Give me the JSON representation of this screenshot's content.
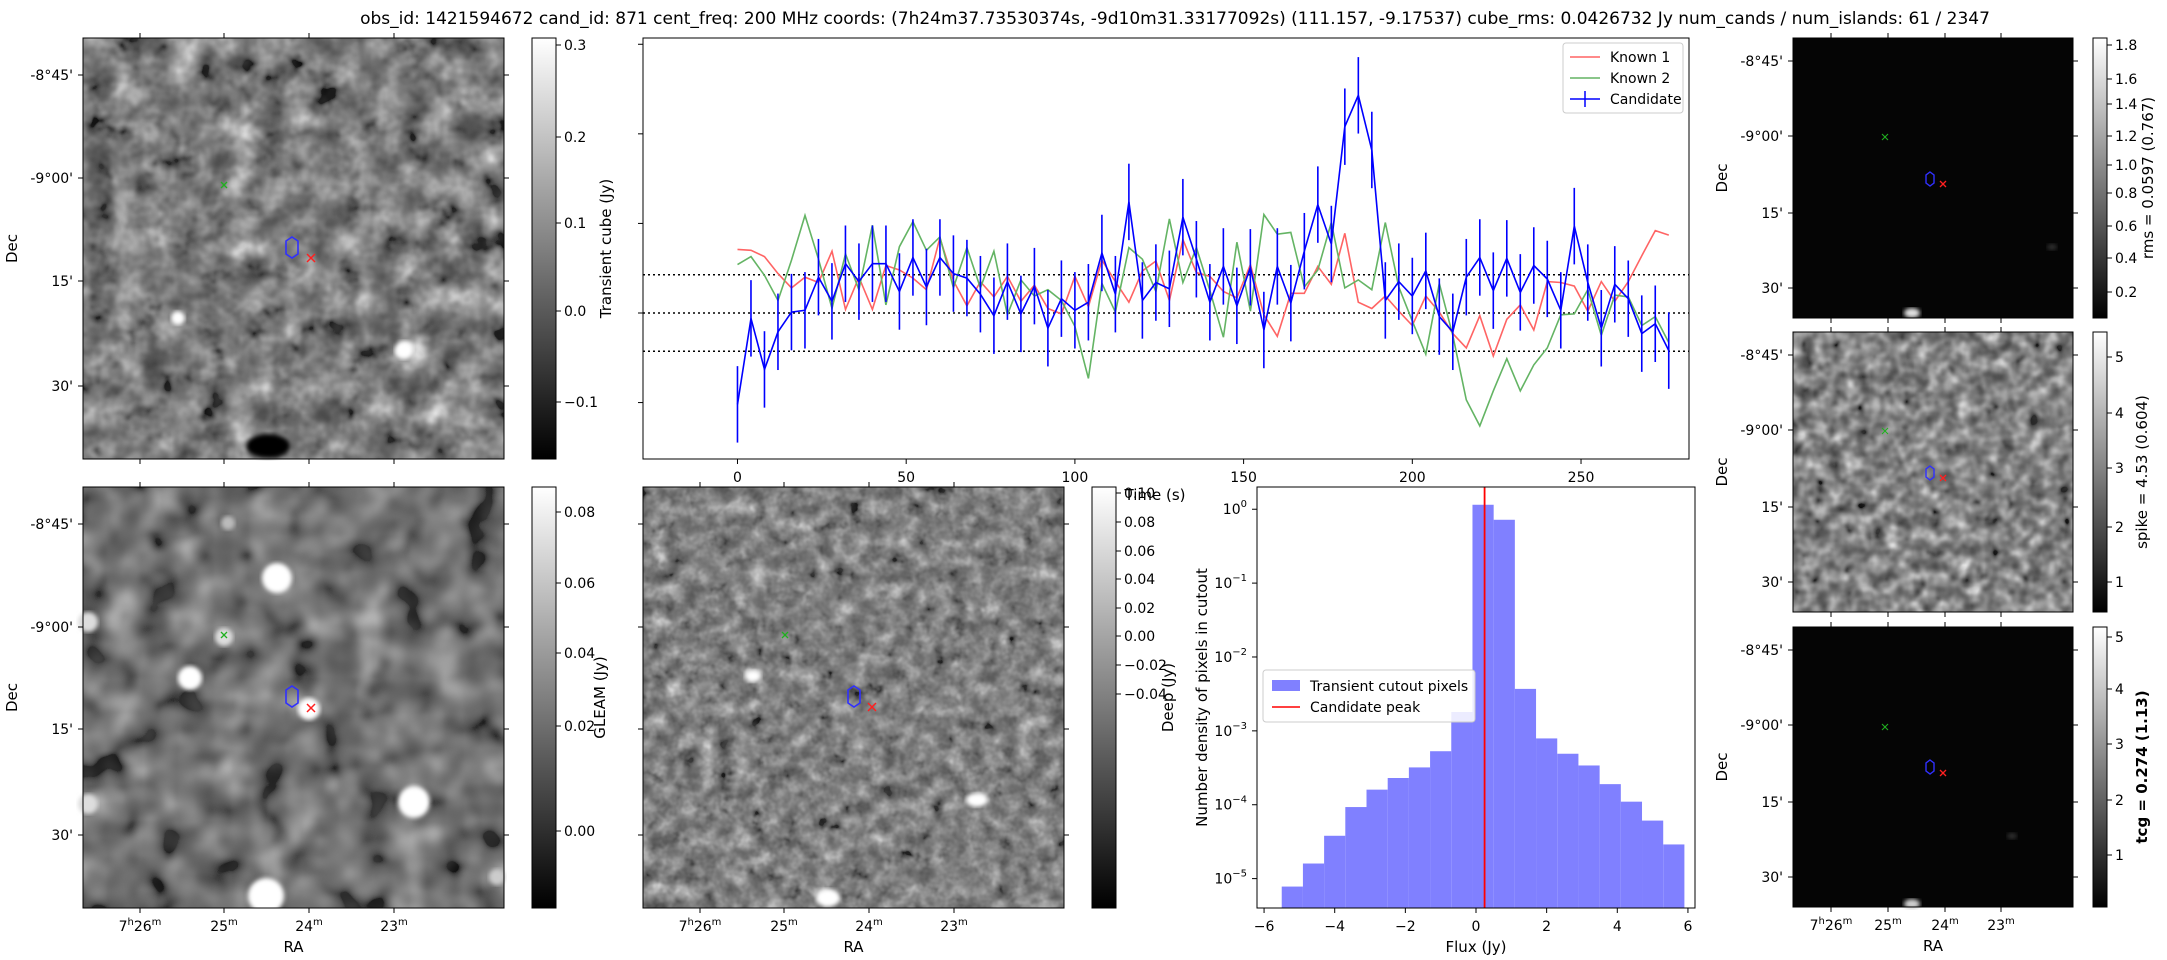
{
  "suptitle": "obs_id: 1421594672 cand_id: 871 cent_freq: 200 MHz coords: (7h24m37.73530374s, -9d10m31.33177092s) (111.157, -9.17537) cube_rms: 0.0426732 Jy num_cands / num_islands: 61 / 2347",
  "sky_axes": {
    "dec_ticks": [
      "-8°45'",
      "-9°00'",
      "15'",
      "30'"
    ],
    "ra_ticks": [
      {
        "h": "7",
        "hu": "h",
        "m": "26",
        "mu": "m"
      },
      {
        "m": "25",
        "mu": "m"
      },
      {
        "m": "24",
        "mu": "m"
      },
      {
        "m": "23",
        "mu": "m"
      }
    ],
    "dec_label": "Dec",
    "ra_label": "RA"
  },
  "colorbars": {
    "transient": {
      "label": "Transient cube (Jy)",
      "ticks": [
        "0.3",
        "0.2",
        "0.1",
        "0.0",
        "−0.1"
      ]
    },
    "gleam": {
      "label": "GLEAM (Jy)",
      "ticks": [
        "0.08",
        "0.06",
        "0.04",
        "0.02",
        "0.00"
      ]
    },
    "deep": {
      "label": "Deep (Jy)",
      "ticks": [
        "0.10",
        "0.08",
        "0.06",
        "0.04",
        "0.02",
        "0.00",
        "−0.02",
        "−0.04"
      ]
    },
    "rms": {
      "label": "rms = 0.0597 (0.767)",
      "ticks": [
        "1.8",
        "1.6",
        "1.4",
        "1.2",
        "1.0",
        "0.8",
        "0.6",
        "0.4",
        "0.2"
      ]
    },
    "spike": {
      "label": "spike = 4.53 (0.604)",
      "ticks": [
        "5",
        "4",
        "3",
        "2",
        "1"
      ]
    },
    "tcg": {
      "label": "tcg = 0.274 (1.13)",
      "ticks": [
        "5",
        "4",
        "3",
        "2",
        "1"
      ]
    }
  },
  "chart_data": [
    {
      "type": "line",
      "xlabel": "Time (s)",
      "ylabel": "",
      "xlim": [
        -28,
        282
      ],
      "ylim": [
        -0.163,
        0.307
      ],
      "x_ticks": [
        0,
        50,
        100,
        150,
        200,
        250
      ],
      "cube_rms": 0.0426732,
      "threshold_lines": [
        0.0426732,
        0,
        -0.0426732
      ],
      "x": [
        0,
        4,
        8,
        12,
        16,
        20,
        24,
        28,
        32,
        36,
        40,
        44,
        48,
        52,
        56,
        60,
        64,
        68,
        72,
        76,
        80,
        84,
        88,
        92,
        96,
        100,
        104,
        108,
        112,
        116,
        120,
        124,
        128,
        132,
        136,
        140,
        144,
        148,
        152,
        156,
        160,
        164,
        168,
        172,
        176,
        180,
        184,
        188,
        192,
        196,
        200,
        204,
        208,
        212,
        216,
        220,
        224,
        228,
        232,
        236,
        240,
        244,
        248,
        252,
        256,
        260,
        264,
        268,
        272,
        276
      ],
      "series": [
        {
          "name": "Known 1",
          "color": "#ff6464",
          "values": [
            0.071,
            0.07,
            0.063,
            0.044,
            0.028,
            0.04,
            0.034,
            0.069,
            0.004,
            0.04,
            0.004,
            0.053,
            0.048,
            0.039,
            0.026,
            0.084,
            0.036,
            0.008,
            0.035,
            0.018,
            0.041,
            0.013,
            0.031,
            0.005,
            -0.001,
            0.041,
            0.007,
            0.059,
            0.035,
            0.012,
            0.047,
            0.058,
            0.014,
            0.082,
            0.045,
            0.041,
            0.024,
            0.017,
            0.054,
            -0.002,
            -0.026,
            0.022,
            0.022,
            0.052,
            0.032,
            0.089,
            0.012,
            0.005,
            0.019,
            0.002,
            -0.014,
            0.019,
            0.001,
            -0.023,
            -0.039,
            -0.003,
            -0.048,
            -0.007,
            0.009,
            -0.019,
            0.035,
            0.034,
            0.03,
            0.002,
            0.035,
            0.013,
            0.035,
            0.064,
            0.092,
            0.087
          ]
        },
        {
          "name": "Known 2",
          "color": "#64b464",
          "values": [
            0.054,
            0.063,
            0.042,
            0.014,
            0.059,
            0.109,
            0.06,
            0.005,
            0.066,
            0.026,
            0.098,
            0.009,
            0.074,
            0.102,
            0.07,
            0.085,
            0.028,
            0.073,
            0.028,
            0.069,
            -0.002,
            0.037,
            0.019,
            0.026,
            0.014,
            -0.015,
            -0.073,
            0.033,
            0.001,
            0.073,
            0.06,
            0.024,
            0.105,
            0.034,
            0.073,
            0.025,
            -0.027,
            0.079,
            0.002,
            0.11,
            0.088,
            0.09,
            0.029,
            0.048,
            0.101,
            0.028,
            0.037,
            0.026,
            0.101,
            0.029,
            -0.009,
            -0.046,
            0.033,
            -0.025,
            -0.097,
            -0.126,
            -0.087,
            -0.051,
            -0.087,
            -0.058,
            -0.039,
            -0.002,
            -0.001,
            0.026,
            -0.025,
            0.02,
            0.018,
            -0.014,
            -0.004,
            -0.033
          ]
        },
        {
          "name": "Candidate",
          "color": "#0000ff",
          "values": [
            -0.102,
            -0.006,
            -0.063,
            -0.021,
            0.001,
            0.003,
            0.04,
            0.013,
            0.055,
            0.035,
            0.055,
            0.055,
            0.024,
            0.062,
            0.029,
            0.062,
            0.044,
            0.039,
            0.021,
            -0.003,
            0.035,
            -0.001,
            0.03,
            -0.017,
            0.016,
            0.003,
            0.012,
            0.067,
            0.021,
            0.124,
            0.014,
            0.034,
            0.027,
            0.107,
            0.06,
            0.012,
            0.052,
            0.008,
            0.051,
            -0.019,
            0.052,
            0.011,
            0.069,
            0.121,
            0.077,
            0.208,
            0.243,
            0.182,
            0.014,
            0.035,
            0.019,
            0.047,
            -0.004,
            -0.021,
            0.04,
            0.062,
            0.025,
            0.061,
            0.023,
            0.053,
            0.038,
            0.003,
            0.097,
            0.034,
            -0.017,
            0.032,
            0.016,
            -0.023,
            -0.012,
            -0.042
          ],
          "errors": 0.04267
        }
      ]
    },
    {
      "type": "bar",
      "xlabel": "Flux (Jy)",
      "ylabel": "Number density of pixels in cutout",
      "yscale": "log",
      "xlim": [
        -6.2,
        6.2
      ],
      "ylim": [
        4e-06,
        2
      ],
      "x_ticks": [
        -6,
        -4,
        -2,
        0,
        2,
        4,
        6
      ],
      "y_ticks": [
        "10^0",
        "10^−1",
        "10^−2",
        "10^−3",
        "10^−4",
        "10^−5"
      ],
      "bin_edges": [
        -5.5,
        -4.9,
        -4.3,
        -3.7,
        -3.1,
        -2.5,
        -1.9,
        -1.3,
        -0.7,
        -0.1,
        0.5,
        1.1,
        1.7,
        2.3,
        2.9,
        3.5,
        4.1,
        4.7,
        5.3,
        5.9
      ],
      "series": [
        {
          "name": "Transient cutout pixels",
          "color": "#8080ff",
          "values": [
            7.8e-06,
            1.6e-05,
            3.8e-05,
            9.3e-05,
            0.00016,
            0.00023,
            0.00032,
            0.00053,
            0.0018,
            1.15,
            0.72,
            0.0037,
            0.00079,
            0.00049,
            0.00034,
            0.00019,
            0.00011,
            6.1e-05,
            2.9e-05,
            1.3e-05
          ]
        },
        {
          "name": "Candidate peak",
          "color": "#ff0000",
          "values": [
            0.243
          ]
        }
      ],
      "legend": "center-left"
    }
  ]
}
